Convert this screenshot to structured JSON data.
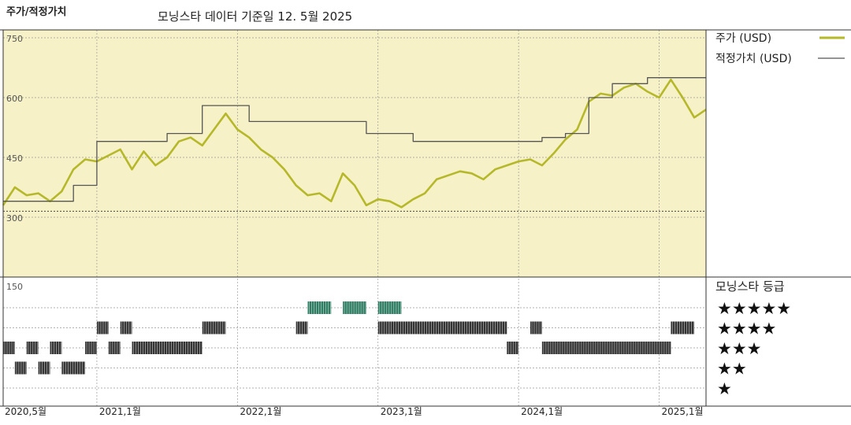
{
  "header": {
    "title": "주가/적정가치",
    "source_note": "모닝스타 데이터 기준일 12. 5월 2025"
  },
  "chart_data": {
    "type": "line",
    "title": "주가/적정가치",
    "y_ticks": [
      "750",
      "600",
      "450",
      "300",
      "150"
    ],
    "ylim": [
      150,
      750
    ],
    "x_ticks": [
      {
        "label": "2020,5월",
        "date": "2020-05"
      },
      {
        "label": "2021,1월",
        "date": "2021-01"
      },
      {
        "label": "2022,1월",
        "date": "2022-01"
      },
      {
        "label": "2023,1월",
        "date": "2023-01"
      },
      {
        "label": "2024,1월",
        "date": "2024-01"
      },
      {
        "label": "2025,1월",
        "date": "2025-01"
      }
    ],
    "xlim": [
      "2020-05",
      "2025-05"
    ],
    "grid": true,
    "legend_position": "right",
    "series": [
      {
        "name": "주가 (USD)",
        "color": "#b5b82a",
        "points": [
          [
            "2020-05",
            330
          ],
          [
            "2020-06",
            375
          ],
          [
            "2020-07",
            355
          ],
          [
            "2020-08",
            360
          ],
          [
            "2020-09",
            340
          ],
          [
            "2020-10",
            365
          ],
          [
            "2020-11",
            420
          ],
          [
            "2020-12",
            445
          ],
          [
            "2021-01",
            440
          ],
          [
            "2021-02",
            455
          ],
          [
            "2021-03",
            470
          ],
          [
            "2021-04",
            420
          ],
          [
            "2021-05",
            465
          ],
          [
            "2021-06",
            430
          ],
          [
            "2021-07",
            450
          ],
          [
            "2021-08",
            490
          ],
          [
            "2021-09",
            500
          ],
          [
            "2021-10",
            480
          ],
          [
            "2021-11",
            520
          ],
          [
            "2021-12",
            560
          ],
          [
            "2022-01",
            520
          ],
          [
            "2022-02",
            500
          ],
          [
            "2022-03",
            470
          ],
          [
            "2022-04",
            450
          ],
          [
            "2022-05",
            420
          ],
          [
            "2022-06",
            380
          ],
          [
            "2022-07",
            355
          ],
          [
            "2022-08",
            360
          ],
          [
            "2022-09",
            340
          ],
          [
            "2022-10",
            410
          ],
          [
            "2022-11",
            380
          ],
          [
            "2022-12",
            330
          ],
          [
            "2023-01",
            345
          ],
          [
            "2023-02",
            340
          ],
          [
            "2023-03",
            325
          ],
          [
            "2023-04",
            345
          ],
          [
            "2023-05",
            360
          ],
          [
            "2023-06",
            395
          ],
          [
            "2023-07",
            405
          ],
          [
            "2023-08",
            415
          ],
          [
            "2023-09",
            410
          ],
          [
            "2023-10",
            395
          ],
          [
            "2023-11",
            420
          ],
          [
            "2023-12",
            430
          ],
          [
            "2024-01",
            440
          ],
          [
            "2024-02",
            445
          ],
          [
            "2024-03",
            430
          ],
          [
            "2024-04",
            460
          ],
          [
            "2024-05",
            495
          ],
          [
            "2024-06",
            520
          ],
          [
            "2024-07",
            590
          ],
          [
            "2024-08",
            610
          ],
          [
            "2024-09",
            605
          ],
          [
            "2024-10",
            625
          ],
          [
            "2024-11",
            635
          ],
          [
            "2024-12",
            615
          ],
          [
            "2025-01",
            600
          ],
          [
            "2025-02",
            645
          ],
          [
            "2025-03",
            600
          ],
          [
            "2025-04",
            550
          ],
          [
            "2025-05",
            570
          ]
        ]
      },
      {
        "name": "적정가치 (USD)",
        "color": "#555555",
        "points": [
          [
            "2020-05",
            340
          ],
          [
            "2020-11",
            340
          ],
          [
            "2020-11",
            380
          ],
          [
            "2021-01",
            380
          ],
          [
            "2021-01",
            490
          ],
          [
            "2021-07",
            490
          ],
          [
            "2021-07",
            510
          ],
          [
            "2021-10",
            510
          ],
          [
            "2021-10",
            580
          ],
          [
            "2022-02",
            580
          ],
          [
            "2022-02",
            540
          ],
          [
            "2022-12",
            540
          ],
          [
            "2022-12",
            510
          ],
          [
            "2023-04",
            510
          ],
          [
            "2023-04",
            490
          ],
          [
            "2024-03",
            490
          ],
          [
            "2024-03",
            500
          ],
          [
            "2024-05",
            500
          ],
          [
            "2024-05",
            510
          ],
          [
            "2024-07",
            510
          ],
          [
            "2024-07",
            600
          ],
          [
            "2024-09",
            600
          ],
          [
            "2024-09",
            635
          ],
          [
            "2024-12",
            635
          ],
          [
            "2024-12",
            650
          ],
          [
            "2025-05",
            650
          ]
        ]
      },
      {
        "name": "",
        "color": "#444444",
        "dashed": true,
        "points": [
          [
            "2020-05",
            315
          ],
          [
            "2025-05",
            315
          ]
        ]
      }
    ]
  },
  "rating_panel": {
    "title": "모닝스타 등급",
    "levels": [
      "★★★★★",
      "★★★★",
      "★★★",
      "★★",
      "★"
    ],
    "level_colors": [
      "#2e7d62",
      "#333333",
      "#333333",
      "#333333",
      "#333333"
    ],
    "history": [
      {
        "level": 5,
        "segments": [
          [
            "2022-07",
            "2022-09"
          ],
          [
            "2022-10",
            "2022-12"
          ],
          [
            "2023-01",
            "2023-03"
          ]
        ]
      },
      {
        "level": 4,
        "segments": [
          [
            "2021-01",
            "2021-02"
          ],
          [
            "2021-03",
            "2021-04"
          ],
          [
            "2021-10",
            "2021-12"
          ],
          [
            "2022-06",
            "2022-07"
          ],
          [
            "2023-01",
            "2023-02"
          ],
          [
            "2023-02",
            "2023-12"
          ],
          [
            "2024-02",
            "2024-03"
          ],
          [
            "2025-02",
            "2025-04"
          ]
        ]
      },
      {
        "level": 3,
        "segments": [
          [
            "2020-05",
            "2020-06"
          ],
          [
            "2020-07",
            "2020-08"
          ],
          [
            "2020-09",
            "2020-10"
          ],
          [
            "2020-12",
            "2021-01"
          ],
          [
            "2021-02",
            "2021-03"
          ],
          [
            "2021-04",
            "2021-10"
          ],
          [
            "2023-12",
            "2024-01"
          ],
          [
            "2024-03",
            "2025-02"
          ]
        ]
      },
      {
        "level": 2,
        "segments": [
          [
            "2020-06",
            "2020-07"
          ],
          [
            "2020-08",
            "2020-09"
          ],
          [
            "2020-10",
            "2020-12"
          ]
        ]
      }
    ]
  }
}
